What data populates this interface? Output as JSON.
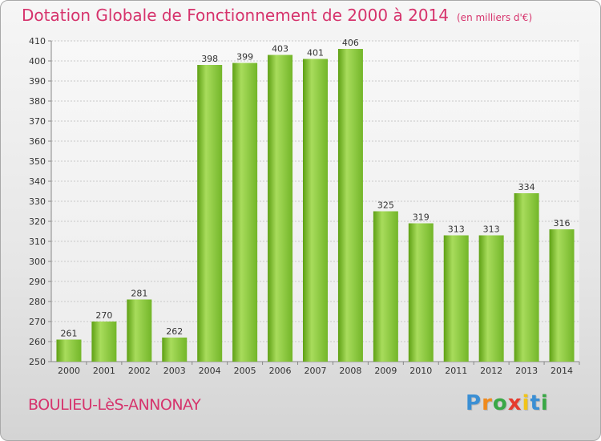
{
  "title": "Dotation Globale de Fonctionnement de 2000 à 2014",
  "subtitle": "(en milliers d'€)",
  "commune": "BOULIEU-LèS-ANNONAY",
  "logo_text": "Proxiti",
  "logo_letters": [
    {
      "ch": "P",
      "color": "#3a8fd4"
    },
    {
      "ch": "r",
      "color": "#f08a1c"
    },
    {
      "ch": "o",
      "color": "#39a845"
    },
    {
      "ch": "x",
      "color": "#e63b2e"
    },
    {
      "ch": "i",
      "color": "#f2c418"
    },
    {
      "ch": "t",
      "color": "#3a8fd4"
    },
    {
      "ch": "i",
      "color": "#39a845"
    }
  ],
  "colors": {
    "title": "#d6336c",
    "bar_light": "#a8dc5c",
    "bar_dark": "#5ea014"
  },
  "chart_data": {
    "type": "bar",
    "title": "Dotation Globale de Fonctionnement de 2000 à 2014",
    "subtitle": "(en milliers d'€)",
    "categories": [
      "2000",
      "2001",
      "2002",
      "2003",
      "2004",
      "2005",
      "2006",
      "2007",
      "2008",
      "2009",
      "2010",
      "2011",
      "2012",
      "2013",
      "2014"
    ],
    "values": [
      261,
      270,
      281,
      262,
      398,
      399,
      403,
      401,
      406,
      325,
      319,
      313,
      313,
      334,
      316
    ],
    "ylim": [
      250,
      410
    ],
    "yticks": [
      250,
      260,
      270,
      280,
      290,
      300,
      310,
      320,
      330,
      340,
      350,
      360,
      370,
      380,
      390,
      400,
      410
    ],
    "grid": "horizontal dashed",
    "xlabel": "",
    "ylabel": ""
  }
}
